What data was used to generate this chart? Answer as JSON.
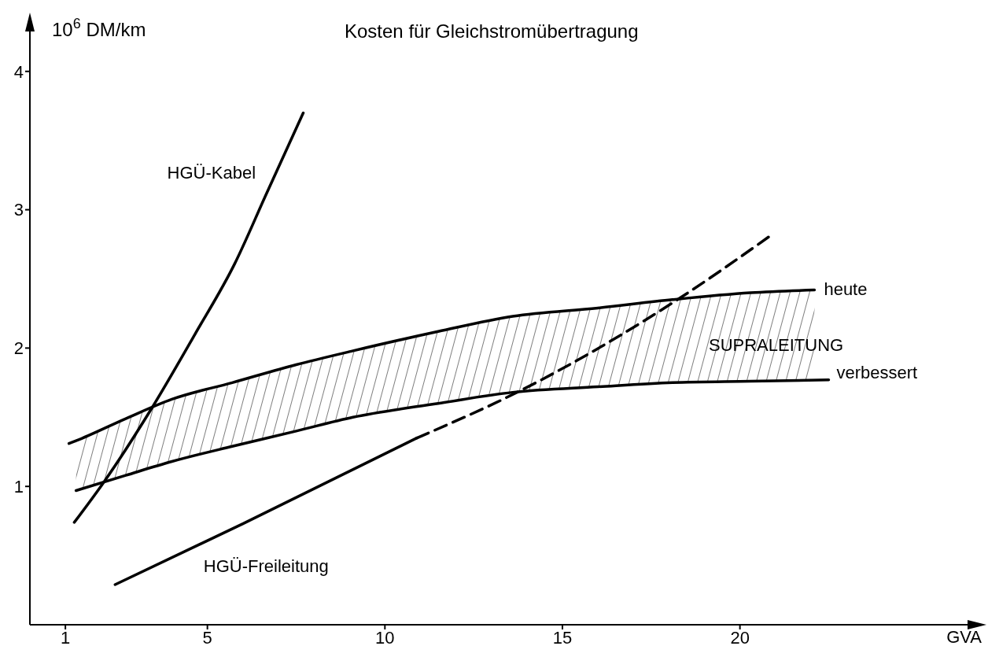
{
  "chart_data": {
    "type": "line",
    "title": "Kosten für Gleichstromübertragung",
    "xlabel": "GVA",
    "ylabel": "10$^{6}$ DM/km",
    "xlim": [
      0,
      26.5
    ],
    "xticks": [
      1,
      5,
      10,
      15,
      20
    ],
    "ylim": [
      0,
      4.3
    ],
    "yticks": [
      1,
      2,
      3,
      4
    ],
    "grid": false,
    "legend": false,
    "marker": "none",
    "series": [
      {
        "name": "HGÜ-Kabel",
        "color": "#000000",
        "x": [
          1.25,
          2.08,
          3.42,
          4.65,
          5.77,
          6.67,
          7.7
        ],
        "values": [
          0.74,
          1.03,
          1.56,
          2.1,
          2.61,
          3.12,
          3.7
        ]
      },
      {
        "name": "HGÜ-Freileitung",
        "color": "#000000",
        "x": [
          2.4,
          6,
          10.9
        ],
        "values": [
          0.29,
          0.73,
          1.35
        ]
      },
      {
        "color": "#000000",
        "line_style": "dashed",
        "x": [
          10.9,
          13.8,
          18.3,
          20.9
        ],
        "values": [
          1.35,
          1.69,
          2.36,
          2.82
        ]
      },
      {
        "name": "heute",
        "color": "#000000",
        "x": [
          1.1,
          1.3,
          2.7,
          4,
          5.7,
          7.5,
          9.1,
          11.5,
          13.6,
          16,
          18.1,
          20.3,
          22.1
        ],
        "values": [
          1.31,
          1.33,
          1.49,
          1.63,
          1.75,
          1.88,
          1.98,
          2.12,
          2.23,
          2.29,
          2.35,
          2.4,
          2.42
        ],
        "lower": [
          null,
          0.97,
          1.08,
          1.18,
          1.29,
          1.4,
          1.5,
          1.6,
          1.68,
          1.72,
          1.75,
          1.76,
          1.77
        ],
        "upper": [
          null,
          1.33,
          1.49,
          1.63,
          1.75,
          1.88,
          1.98,
          2.12,
          2.23,
          2.29,
          2.35,
          2.4,
          2.42
        ]
      },
      {
        "name": "verbessert",
        "color": "#000000",
        "x": [
          1.3,
          2.7,
          4,
          5.7,
          7.5,
          9.1,
          11.5,
          13.6,
          16,
          18.1,
          20.3,
          22.5
        ],
        "values": [
          0.97,
          1.08,
          1.18,
          1.29,
          1.4,
          1.5,
          1.6,
          1.68,
          1.72,
          1.75,
          1.76,
          1.77
        ]
      }
    ],
    "annotations": [
      "SUPRALEITUNG"
    ]
  }
}
